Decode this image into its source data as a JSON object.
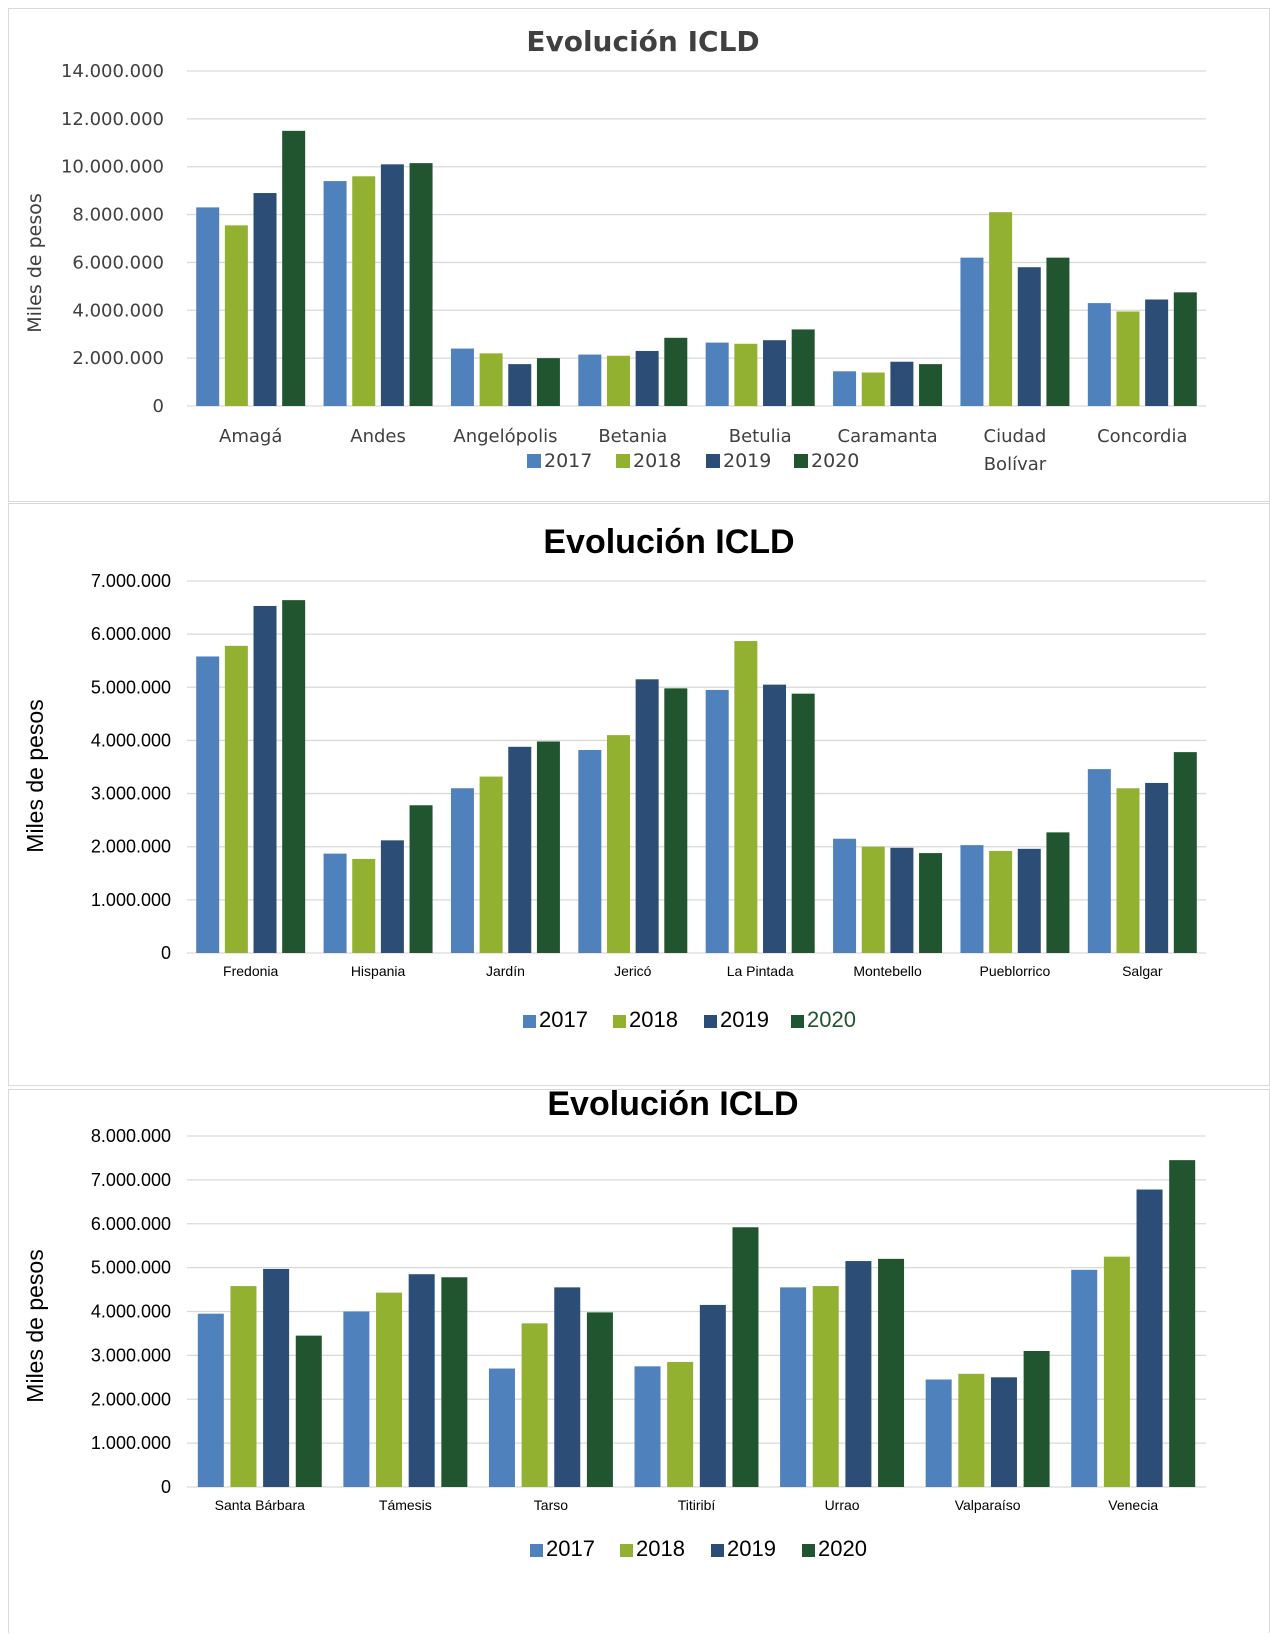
{
  "colors": {
    "2017": "#4f81bd",
    "2018": "#92b131",
    "2019": "#2c4d75",
    "2020": "#21552f",
    "grid": "#d9d9d9",
    "text": "#404040",
    "legend_2020_text_chart2": "#21552f"
  },
  "chart_data": [
    {
      "type": "bar",
      "title": "Evolución ICLD",
      "ylabel": "Miles de pesos",
      "xlabel": "",
      "ylim": [
        0,
        14000000
      ],
      "yticks": [
        "0",
        "2.000.000",
        "4.000.000",
        "6.000.000",
        "8.000.000",
        "10.000.000",
        "12.000.000",
        "14.000.000"
      ],
      "grid": true,
      "legend_position": "bottom",
      "categories": [
        "Amagá",
        "Andes",
        "Angelópolis",
        "Betania",
        "Betulia",
        "Caramanta",
        "Ciudad Bolívar",
        "Concordia"
      ],
      "category_labels": [
        [
          "Amagá"
        ],
        [
          "Andes"
        ],
        [
          "Angelópolis"
        ],
        [
          "Betania"
        ],
        [
          "Betulia"
        ],
        [
          "Caramanta"
        ],
        [
          "Ciudad",
          "Bolívar"
        ],
        [
          "Concordia"
        ]
      ],
      "series": [
        {
          "name": "2017",
          "values": [
            8300000,
            9400000,
            2400000,
            2150000,
            2650000,
            1450000,
            6200000,
            4300000
          ]
        },
        {
          "name": "2018",
          "values": [
            7550000,
            9600000,
            2200000,
            2100000,
            2600000,
            1400000,
            8100000,
            3950000
          ]
        },
        {
          "name": "2019",
          "values": [
            8900000,
            10100000,
            1750000,
            2300000,
            2750000,
            1850000,
            5800000,
            4450000
          ]
        },
        {
          "name": "2020",
          "values": [
            11500000,
            10150000,
            2000000,
            2850000,
            3200000,
            1750000,
            6200000,
            4750000
          ]
        }
      ]
    },
    {
      "type": "bar",
      "title": "Evolución ICLD",
      "ylabel": "Miles de pesos",
      "xlabel": "",
      "ylim": [
        0,
        7000000
      ],
      "yticks": [
        "0",
        "1.000.000",
        "2.000.000",
        "3.000.000",
        "4.000.000",
        "5.000.000",
        "6.000.000",
        "7.000.000"
      ],
      "grid": true,
      "legend_position": "bottom",
      "categories": [
        "Fredonia",
        "Hispania",
        "Jardín",
        "Jericó",
        "La Pintada",
        "Montebello",
        "Pueblorrico",
        "Salgar"
      ],
      "category_labels": [
        [
          "Fredonia"
        ],
        [
          "Hispania"
        ],
        [
          "Jardín"
        ],
        [
          "Jericó"
        ],
        [
          "La Pintada"
        ],
        [
          "Montebello"
        ],
        [
          "Pueblorrico"
        ],
        [
          "Salgar"
        ]
      ],
      "series": [
        {
          "name": "2017",
          "values": [
            5580000,
            1870000,
            3100000,
            3820000,
            4950000,
            2150000,
            2030000,
            3460000
          ]
        },
        {
          "name": "2018",
          "values": [
            5780000,
            1770000,
            3320000,
            4100000,
            5870000,
            2000000,
            1920000,
            3100000
          ]
        },
        {
          "name": "2019",
          "values": [
            6530000,
            2120000,
            3880000,
            5150000,
            5050000,
            1980000,
            1960000,
            3200000
          ]
        },
        {
          "name": "2020",
          "values": [
            6640000,
            2780000,
            3980000,
            4980000,
            4880000,
            1880000,
            2270000,
            3780000
          ]
        }
      ]
    },
    {
      "type": "bar",
      "title": "Evolución ICLD",
      "ylabel": "Miles de pesos",
      "xlabel": "",
      "ylim": [
        0,
        8000000
      ],
      "yticks": [
        "0",
        "1.000.000",
        "2.000.000",
        "3.000.000",
        "4.000.000",
        "5.000.000",
        "6.000.000",
        "7.000.000",
        "8.000.000"
      ],
      "grid": true,
      "legend_position": "bottom",
      "categories": [
        "Santa Bárbara",
        "Támesis",
        "Tarso",
        "Titiribí",
        "Urrao",
        "Valparaíso",
        "Venecia"
      ],
      "category_labels": [
        [
          "Santa Bárbara"
        ],
        [
          "Támesis"
        ],
        [
          "Tarso"
        ],
        [
          "Titiribí"
        ],
        [
          "Urrao"
        ],
        [
          "Valparaíso"
        ],
        [
          "Venecia"
        ]
      ],
      "series": [
        {
          "name": "2017",
          "values": [
            3950000,
            4000000,
            2700000,
            2750000,
            4550000,
            2450000,
            4950000
          ]
        },
        {
          "name": "2018",
          "values": [
            4580000,
            4430000,
            3730000,
            2850000,
            4580000,
            2580000,
            5250000
          ]
        },
        {
          "name": "2019",
          "values": [
            4970000,
            4850000,
            4550000,
            4150000,
            5150000,
            2500000,
            6780000
          ]
        },
        {
          "name": "2020",
          "values": [
            3450000,
            4780000,
            3980000,
            5920000,
            5200000,
            3100000,
            7450000
          ]
        }
      ]
    }
  ]
}
